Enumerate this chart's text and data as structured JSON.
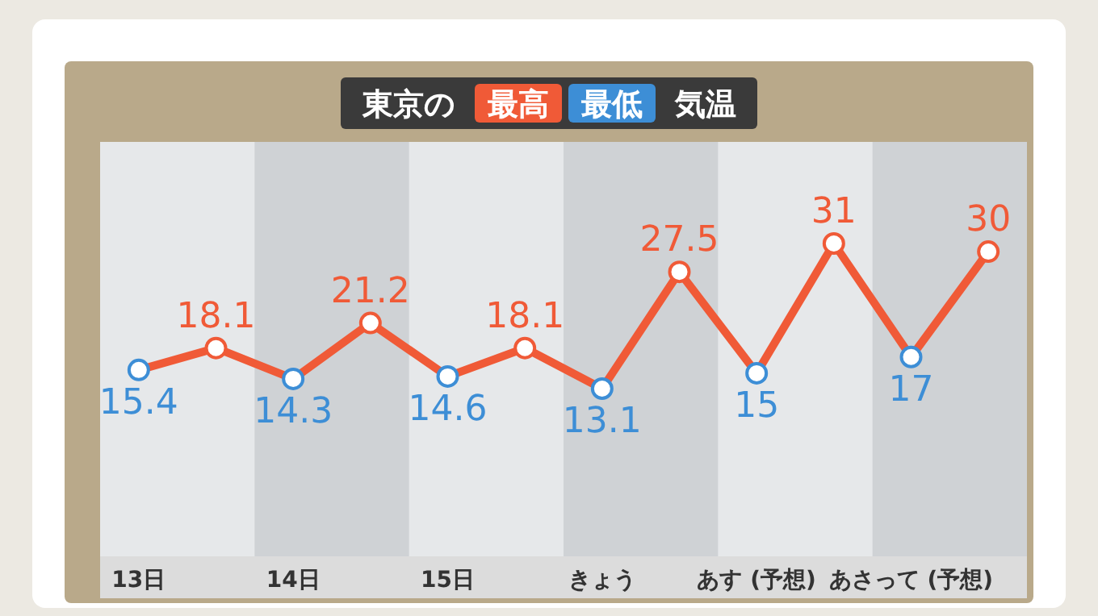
{
  "chart_data": {
    "type": "line",
    "title": "東京の 最高 最低 気温",
    "categories": [
      "13日",
      null,
      "14日",
      null,
      "15日",
      null,
      "きょう",
      null,
      "あす (予想)",
      null,
      "あさって (予想)",
      null
    ],
    "series": [
      {
        "color": "#f05a37",
        "values": [
          15.4,
          18.1,
          14.3,
          21.2,
          14.6,
          18.1,
          13.1,
          27.5,
          15,
          31,
          17,
          30
        ],
        "colors": [
          "#3d8ed6",
          "#f05a37",
          "#3d8ed6",
          "#f05a37",
          "#3d8ed6",
          "#f05a37",
          "#3d8ed6",
          "#f05a37",
          "#3d8ed6",
          "#f05a37",
          "#3d8ed6",
          "#f05a37"
        ]
      }
    ],
    "marker": "circle",
    "data_labels": true
  }
}
